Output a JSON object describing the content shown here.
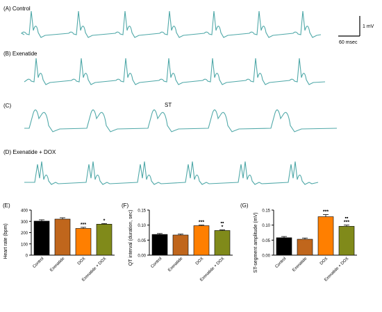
{
  "ecg_panels": [
    {
      "label": "(A) Control"
    },
    {
      "label": "(B) Exenatide"
    },
    {
      "label": "(C)",
      "annotation": "ST"
    },
    {
      "label": "(D) Exenatide + DOX"
    }
  ],
  "scale_bar": {
    "voltage": "1 mV",
    "time": "60 msec"
  },
  "trace_color": "#4fa8a8",
  "chart_data": [
    {
      "type": "bar",
      "panel": "(E)",
      "ylabel": "Heart rate (bpm)",
      "categories": [
        "Control",
        "Exenatide",
        "DOX",
        "Exenatide + DOX"
      ],
      "values": [
        302,
        320,
        237,
        275
      ],
      "errors": [
        12,
        12,
        10,
        6
      ],
      "significance": [
        "",
        "",
        "***",
        "*"
      ],
      "ylim": [
        0,
        400
      ],
      "yticks": [
        "0",
        "100",
        "200",
        "300",
        "400"
      ],
      "colors": [
        "#000000",
        "#c0661c",
        "#ff7f00",
        "#808a1a"
      ]
    },
    {
      "type": "bar",
      "panel": "(F)",
      "ylabel": "QT interval (duration, sec)",
      "categories": [
        "Control",
        "Exenatide",
        "DOX",
        "Exenatide + DOX"
      ],
      "values": [
        0.069,
        0.067,
        0.098,
        0.082
      ],
      "errors": [
        0.003,
        0.003,
        0.002,
        0.002
      ],
      "significance": [
        "",
        "",
        "***",
        "••\n*"
      ],
      "ylim": [
        0,
        0.15
      ],
      "yticks": [
        "0.00",
        "0.05",
        "0.10",
        "0.15"
      ],
      "colors": [
        "#000000",
        "#c0661c",
        "#ff7f00",
        "#808a1a"
      ]
    },
    {
      "type": "bar",
      "panel": "(G)",
      "ylabel": "ST-segment amplitude (mV)",
      "categories": [
        "Control",
        "Exenatide",
        "DOX",
        "Exenatide + DOX"
      ],
      "values": [
        0.058,
        0.053,
        0.128,
        0.096
      ],
      "errors": [
        0.004,
        0.004,
        0.007,
        0.004
      ],
      "significance": [
        "",
        "",
        "***",
        "••\n***"
      ],
      "ylim": [
        0,
        0.15
      ],
      "yticks": [
        "0.00",
        "0.05",
        "0.10",
        "0.15"
      ],
      "colors": [
        "#000000",
        "#c0661c",
        "#ff7f00",
        "#808a1a"
      ]
    }
  ]
}
